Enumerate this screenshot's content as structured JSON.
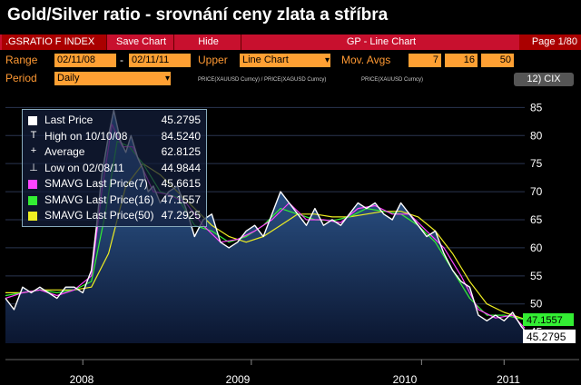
{
  "header": {
    "title": "Gold/Silver ratio - srovnání ceny zlata a stříbra"
  },
  "toolbar": {
    "index": ".GSRATIO F INDEX",
    "save_chart": "Save Chart",
    "hide": "Hide",
    "chart_name": "GP - Line Chart",
    "page": "Page 1/80"
  },
  "controls": {
    "range_label": "Range",
    "range_start": "02/11/08",
    "range_sep": "-",
    "range_end": "02/11/11",
    "upper_label": "Upper",
    "upper_value": "Line Chart",
    "mov_avgs_label": "Mov. Avgs",
    "mov_avgs": [
      "7",
      "16",
      "50"
    ],
    "period_label": "Period",
    "period_value": "Daily",
    "formula1": "PRICE(XAUUSD Curncy) / PRICE(XAGUSD Curncy)",
    "formula2": "PRICE(XAUUSD Curncy)",
    "cix": "12) CIX"
  },
  "legend": {
    "items": [
      {
        "symbol": "box",
        "color": "#ffffff",
        "label": "Last Price",
        "value": "45.2795"
      },
      {
        "symbol": "T",
        "color": "#ffffff",
        "label": "High on 10/10/08",
        "value": "84.5240"
      },
      {
        "symbol": "+",
        "color": "#ffffff",
        "label": "Average",
        "value": "62.8125"
      },
      {
        "symbol": "⊥",
        "color": "#ffffff",
        "label": "Low on 02/08/11",
        "value": "44.9844"
      },
      {
        "symbol": "box",
        "color": "#ff44ff",
        "label": "SMAVG Last Price(7)",
        "value": "45.6615"
      },
      {
        "symbol": "box",
        "color": "#33ee33",
        "label": "SMAVG Last Price(16)",
        "value": "47.1557"
      },
      {
        "symbol": "box",
        "color": "#eeee22",
        "label": "SMAVG Last Price(50)",
        "value": "47.2925"
      }
    ]
  },
  "chart_data": {
    "type": "line",
    "ylim": [
      43,
      87
    ],
    "yticks": [
      "45",
      "50",
      "55",
      "60",
      "65",
      "70",
      "75",
      "80",
      "85"
    ],
    "xlabels": [
      "2008",
      "2009",
      "2010",
      "2011"
    ],
    "xrange": [
      2008.1,
      2011.12
    ],
    "last_price_label": "45.2795",
    "sma16_label": "47.1557",
    "colors": {
      "price": "#ffffff",
      "sma7": "#ff44ff",
      "sma16": "#33ee33",
      "sma50": "#eeee22",
      "area_top": "#3a6fb0",
      "area_bottom": "#0b1630"
    },
    "series": [
      {
        "name": "Last Price",
        "color": "#ffffff",
        "x": [
          2008.1,
          2008.15,
          2008.2,
          2008.25,
          2008.3,
          2008.35,
          2008.4,
          2008.45,
          2008.5,
          2008.55,
          2008.6,
          2008.63,
          2008.66,
          2008.7,
          2008.73,
          2008.77,
          2008.8,
          2008.83,
          2008.87,
          2008.9,
          2008.93,
          2008.96,
          2009.0,
          2009.05,
          2009.1,
          2009.15,
          2009.2,
          2009.25,
          2009.3,
          2009.35,
          2009.4,
          2009.45,
          2009.5,
          2009.55,
          2009.6,
          2009.65,
          2009.7,
          2009.75,
          2009.8,
          2009.85,
          2009.9,
          2009.95,
          2010.0,
          2010.05,
          2010.1,
          2010.15,
          2010.2,
          2010.25,
          2010.3,
          2010.35,
          2010.4,
          2010.45,
          2010.5,
          2010.55,
          2010.6,
          2010.65,
          2010.7,
          2010.75,
          2010.8,
          2010.85,
          2010.9,
          2010.95,
          2011.0,
          2011.05,
          2011.1,
          2011.12
        ],
        "y": [
          51,
          49,
          53,
          52,
          53,
          52,
          51,
          53,
          53,
          52,
          56,
          64,
          73,
          80,
          84.5,
          79,
          77,
          80,
          76,
          74,
          70,
          71,
          68,
          70,
          71,
          67,
          62,
          65,
          66,
          61,
          60,
          61,
          63,
          64,
          62,
          66,
          70,
          68,
          66,
          64,
          67,
          64,
          65,
          64,
          66,
          68,
          67,
          68,
          66,
          65,
          68,
          66,
          64,
          62,
          63,
          59,
          56,
          54,
          53,
          48,
          47,
          48,
          47,
          48.5,
          46,
          45.28
        ]
      },
      {
        "name": "SMAVG Last Price(7)",
        "color": "#ff44ff",
        "x": [
          2008.1,
          2008.2,
          2008.3,
          2008.4,
          2008.5,
          2008.6,
          2008.66,
          2008.72,
          2008.78,
          2008.84,
          2008.9,
          2008.96,
          2009.05,
          2009.15,
          2009.25,
          2009.35,
          2009.45,
          2009.55,
          2009.65,
          2009.75,
          2009.85,
          2009.95,
          2010.05,
          2010.15,
          2010.25,
          2010.35,
          2010.45,
          2010.55,
          2010.65,
          2010.75,
          2010.85,
          2010.95,
          2011.05,
          2011.12
        ],
        "y": [
          51,
          52,
          52.5,
          51.5,
          52.5,
          55,
          70,
          82,
          78,
          78,
          74,
          70,
          69.5,
          68,
          64,
          61,
          61.5,
          63,
          65,
          68,
          65,
          65,
          64.5,
          67,
          67.5,
          66,
          66,
          63,
          60,
          55,
          49,
          47.5,
          48,
          45.7
        ]
      },
      {
        "name": "SMAVG Last Price(16)",
        "color": "#33ee33",
        "x": [
          2008.1,
          2008.2,
          2008.3,
          2008.4,
          2008.5,
          2008.6,
          2008.68,
          2008.75,
          2008.82,
          2008.9,
          2009.0,
          2009.1,
          2009.2,
          2009.3,
          2009.4,
          2009.5,
          2009.6,
          2009.7,
          2009.8,
          2009.9,
          2010.0,
          2010.1,
          2010.2,
          2010.3,
          2010.4,
          2010.5,
          2010.6,
          2010.7,
          2010.8,
          2010.9,
          2011.0,
          2011.12
        ],
        "y": [
          51.5,
          52,
          52.5,
          52,
          52.5,
          54,
          66,
          79,
          78,
          75,
          70,
          69,
          64,
          63,
          61,
          62,
          64,
          67,
          66,
          65,
          64.8,
          65.5,
          67,
          66.5,
          66,
          64,
          61,
          56,
          51,
          48,
          48,
          47.2
        ]
      },
      {
        "name": "SMAVG Last Price(50)",
        "color": "#eeee22",
        "x": [
          2008.1,
          2008.2,
          2008.3,
          2008.4,
          2008.5,
          2008.6,
          2008.7,
          2008.8,
          2008.9,
          2009.0,
          2009.1,
          2009.2,
          2009.3,
          2009.4,
          2009.5,
          2009.6,
          2009.7,
          2009.8,
          2009.9,
          2010.0,
          2010.1,
          2010.2,
          2010.3,
          2010.4,
          2010.5,
          2010.6,
          2010.7,
          2010.8,
          2010.9,
          2011.0,
          2011.12
        ],
        "y": [
          52,
          52,
          52.5,
          52.5,
          52.5,
          53,
          59,
          71,
          75,
          73,
          70,
          67,
          64,
          62,
          61,
          62,
          64,
          66,
          66,
          65.5,
          65.5,
          66,
          66.5,
          66.5,
          65.5,
          63,
          59,
          54,
          50,
          48.5,
          47.3
        ]
      }
    ]
  }
}
